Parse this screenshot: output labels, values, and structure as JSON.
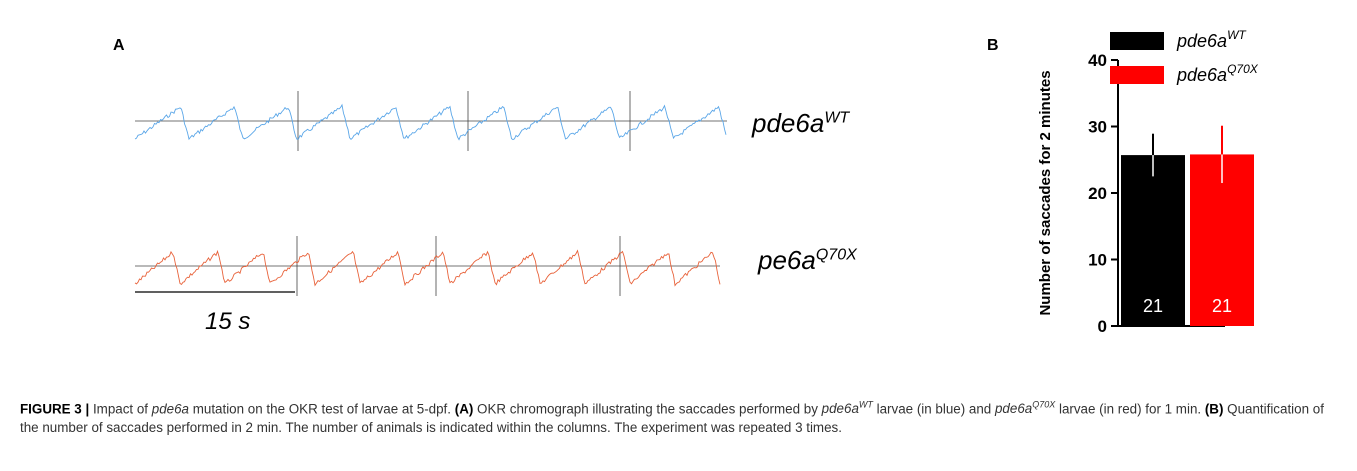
{
  "panel_a": {
    "letter": "A",
    "trace_labels": [
      {
        "base": "pde6a",
        "sup": "WT",
        "color": "#5aa6e8"
      },
      {
        "base": "pe6a",
        "sup": "Q70X",
        "color": "#e8623a"
      }
    ],
    "scale_bar_label": "15 s"
  },
  "panel_b": {
    "letter": "B",
    "legend": [
      {
        "base": "pde6a",
        "sup": "WT",
        "color": "#000000"
      },
      {
        "base": "pde6a",
        "sup": "Q70X",
        "color": "#ff0000"
      }
    ]
  },
  "chart_data": {
    "type": "bar",
    "categories": [
      "pde6aWT",
      "pde6aQ70X"
    ],
    "values": [
      25.7,
      25.8
    ],
    "errors": [
      3.2,
      4.3
    ],
    "bar_labels": [
      "21",
      "21"
    ],
    "colors": [
      "#000000",
      "#ff0000"
    ],
    "ylabel": "Number of saccades for 2 minutes",
    "ylim": [
      0,
      40
    ],
    "yticks": [
      0,
      10,
      20,
      30,
      40
    ]
  },
  "caption": {
    "figure_label": "FIGURE 3 |",
    "t1": " Impact of ",
    "gene": "pde6a",
    "t2": " mutation on the OKR test of larvae at 5-dpf. ",
    "a_label": "(A)",
    "t3": " OKR chromograph illustrating the saccades performed by ",
    "wt_base": "pde6a",
    "wt_sup": "WT",
    "t4": " larvae (in blue) and ",
    "mut_base": "pde6a",
    "mut_sup": "Q70X",
    "t5": " larvae (in red) for 1 min. ",
    "b_label": "(B)",
    "t6": " Quantification of the number of saccades performed in 2 min. The number of animals is indicated within the columns. The experiment was repeated 3 times."
  }
}
